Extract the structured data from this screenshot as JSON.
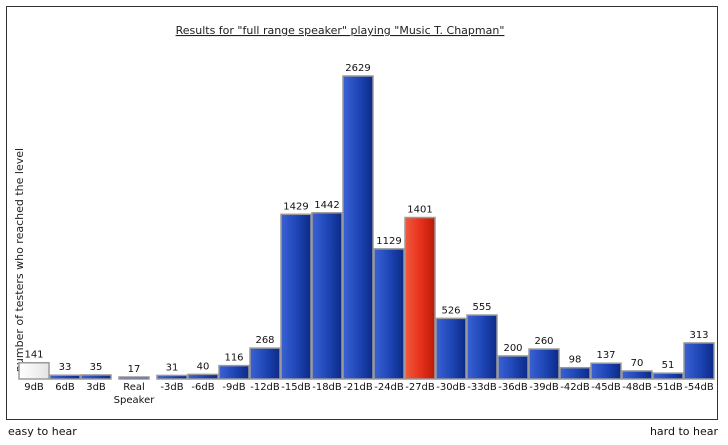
{
  "chart_data": {
    "type": "bar",
    "title": "Results for \"full range speaker\" playing \"Music T. Chapman\"",
    "ylabel": "number of testers who reached the level",
    "xlabel": "",
    "categories": [
      "9dB",
      "6dB",
      "3dB",
      "Real Speaker",
      "-3dB",
      "-6dB",
      "-9dB",
      "-12dB",
      "-15dB",
      "-18dB",
      "-21dB",
      "-24dB",
      "-27dB",
      "-30dB",
      "-33dB",
      "-36dB",
      "-39dB",
      "-42dB",
      "-45dB",
      "-48dB",
      "-51dB",
      "-54dB"
    ],
    "values": [
      141,
      33,
      35,
      17,
      31,
      40,
      116,
      268,
      1429,
      1442,
      2629,
      1129,
      1401,
      526,
      555,
      200,
      260,
      98,
      137,
      70,
      51,
      313
    ],
    "ylim": [
      0,
      2629
    ],
    "grid": false,
    "highlight_category": "-27dB",
    "colors": {
      "bar": "#1f47b8",
      "bar_dark": "#0c2a86",
      "highlight": "#e8321d",
      "highlight_dark": "#b81a08",
      "reference": "#f2f2f2"
    }
  },
  "footer": {
    "left": "easy to hear",
    "right": "hard to hear"
  }
}
